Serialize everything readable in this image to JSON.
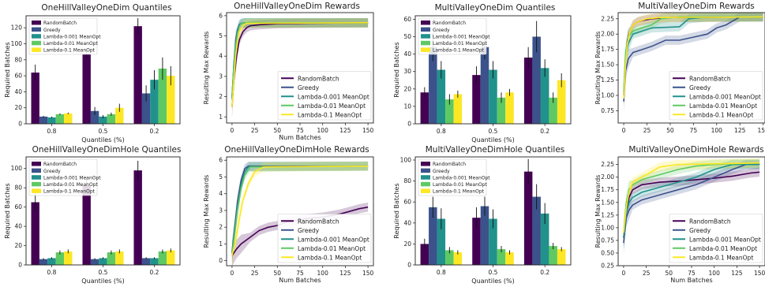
{
  "colors": {
    "RandomBatch": "#440154",
    "Greedy": "#3b528b",
    "Lambda-0.001 MeanOpt": "#21918c",
    "Lambda-0.01 MeanOpt": "#5ec962",
    "Lambda-0.1 MeanOpt": "#fde725"
  },
  "chart_data": [
    {
      "id": "p1",
      "type": "bar",
      "title": "OneHillValleyOneDim Quantiles",
      "xlabel": "Quantiles (%)",
      "ylabel": "Required Batches",
      "categories": [
        "0.8",
        "0.5",
        "0.2"
      ],
      "ylim": [
        0,
        135
      ],
      "yticks": [
        0,
        20,
        40,
        60,
        80,
        100,
        120
      ],
      "legend": "top-left",
      "series": [
        {
          "name": "RandomBatch",
          "values": [
            64,
            87,
            122
          ],
          "err": [
            10,
            6,
            10
          ]
        },
        {
          "name": "Greedy",
          "values": [
            9,
            16,
            38
          ],
          "err": [
            1,
            5,
            10
          ]
        },
        {
          "name": "Lambda-0.001 MeanOpt",
          "values": [
            8,
            9,
            55
          ],
          "err": [
            1,
            2,
            12
          ]
        },
        {
          "name": "Lambda-0.01 MeanOpt",
          "values": [
            12,
            12,
            69
          ],
          "err": [
            1,
            2,
            14
          ]
        },
        {
          "name": "Lambda-0.1 MeanOpt",
          "values": [
            13,
            20,
            60
          ],
          "err": [
            1,
            5,
            12
          ]
        }
      ]
    },
    {
      "id": "p2",
      "type": "line",
      "title": "OneHillValleyOneDim Rewards",
      "xlabel": "Num Batches",
      "ylabel": "Resulting Max Rewards",
      "xlim": [
        -6,
        156
      ],
      "ylim": [
        0.7,
        6.15
      ],
      "xticks": [
        0,
        25,
        50,
        75,
        100,
        125,
        150
      ],
      "yticks": [
        1,
        2,
        3,
        4,
        5,
        6
      ],
      "legend": "bottom-right",
      "series": [
        {
          "name": "RandomBatch",
          "x": [
            0,
            2,
            5,
            8,
            12,
            16,
            20,
            30,
            50,
            80,
            150
          ],
          "y": [
            1.5,
            2.8,
            4.0,
            4.8,
            5.2,
            5.4,
            5.5,
            5.55,
            5.6,
            5.62,
            5.65
          ]
        },
        {
          "name": "Greedy",
          "x": [
            0,
            2,
            4,
            6,
            8,
            10,
            14,
            150
          ],
          "y": [
            2.0,
            3.5,
            4.8,
            5.3,
            5.55,
            5.62,
            5.65,
            5.65
          ]
        },
        {
          "name": "Lambda-0.001 MeanOpt",
          "x": [
            0,
            2,
            4,
            6,
            8,
            10,
            14,
            150
          ],
          "y": [
            1.9,
            3.6,
            4.6,
            5.2,
            5.5,
            5.6,
            5.65,
            5.65
          ]
        },
        {
          "name": "Lambda-0.01 MeanOpt",
          "x": [
            0,
            2,
            4,
            6,
            8,
            10,
            14,
            150
          ],
          "y": [
            2.0,
            3.4,
            4.5,
            5.1,
            5.45,
            5.6,
            5.65,
            5.65
          ]
        },
        {
          "name": "Lambda-0.1 MeanOpt",
          "x": [
            0,
            2,
            4,
            6,
            8,
            12,
            16,
            150
          ],
          "y": [
            1.5,
            2.8,
            4.0,
            4.7,
            5.2,
            5.5,
            5.62,
            5.65
          ]
        }
      ]
    },
    {
      "id": "p3",
      "type": "bar",
      "title": "MultiValleyOneDim Quantiles",
      "xlabel": "Quantiles (%)",
      "ylabel": "Required Batches",
      "categories": [
        "0.8",
        "0.5",
        "0.2"
      ],
      "ylim": [
        0,
        62
      ],
      "yticks": [
        0,
        10,
        20,
        30,
        40,
        50,
        60
      ],
      "legend": "top-left",
      "series": [
        {
          "name": "RandomBatch",
          "values": [
            18,
            28,
            38
          ],
          "err": [
            3,
            5,
            6
          ]
        },
        {
          "name": "Greedy",
          "values": [
            44,
            44,
            50
          ],
          "err": [
            8,
            7,
            9
          ]
        },
        {
          "name": "Lambda-0.001 MeanOpt",
          "values": [
            31,
            31,
            32
          ],
          "err": [
            5,
            5,
            5
          ]
        },
        {
          "name": "Lambda-0.01 MeanOpt",
          "values": [
            14,
            15,
            15
          ],
          "err": [
            3,
            3,
            3
          ]
        },
        {
          "name": "Lambda-0.1 MeanOpt",
          "values": [
            17,
            18,
            25
          ],
          "err": [
            2,
            2,
            4
          ]
        }
      ]
    },
    {
      "id": "p4",
      "type": "line",
      "title": "MultiValleyOneDim Rewards",
      "xlabel": "",
      "ylabel": "Resulting Max Rewards",
      "xlim": [
        -6,
        152
      ],
      "ylim": [
        0.55,
        2.35
      ],
      "xticks": [
        0,
        25,
        50,
        75,
        100,
        125,
        150
      ],
      "yticks": [
        0.75,
        1.0,
        1.25,
        1.5,
        1.75,
        2.0,
        2.25
      ],
      "legend": "bottom-right",
      "series": [
        {
          "name": "RandomBatch",
          "x": [
            0,
            2,
            4,
            7,
            10,
            15,
            20,
            30,
            50,
            150
          ],
          "y": [
            1.0,
            1.6,
            1.9,
            2.05,
            2.15,
            2.2,
            2.22,
            2.25,
            2.27,
            2.28
          ]
        },
        {
          "name": "Greedy",
          "x": [
            0,
            2,
            5,
            10,
            20,
            30,
            45,
            60,
            75,
            90,
            100,
            110,
            125,
            150
          ],
          "y": [
            0.9,
            1.4,
            1.6,
            1.7,
            1.75,
            1.8,
            1.9,
            1.9,
            1.95,
            2.0,
            2.1,
            2.15,
            2.28,
            2.28
          ]
        },
        {
          "name": "Lambda-0.001 MeanOpt",
          "x": [
            0,
            2,
            5,
            10,
            20,
            30,
            60,
            70,
            90,
            150
          ],
          "y": [
            1.05,
            1.6,
            1.85,
            2.0,
            2.05,
            2.1,
            2.12,
            2.25,
            2.28,
            2.28
          ]
        },
        {
          "name": "Lambda-0.01 MeanOpt",
          "x": [
            0,
            2,
            5,
            10,
            20,
            30,
            40,
            60,
            150
          ],
          "y": [
            1.1,
            1.7,
            1.95,
            2.05,
            2.1,
            2.15,
            2.25,
            2.28,
            2.28
          ]
        },
        {
          "name": "Lambda-0.1 MeanOpt",
          "x": [
            0,
            2,
            4,
            7,
            10,
            15,
            25,
            40,
            150
          ],
          "y": [
            0.95,
            1.5,
            1.85,
            2.05,
            2.15,
            2.2,
            2.25,
            2.27,
            2.28
          ]
        }
      ]
    },
    {
      "id": "p5",
      "type": "bar",
      "title": "OneHillValleyOneDimHole Quantiles",
      "xlabel": "Quantiles (%)",
      "ylabel": "Required Batches",
      "categories": [
        "0.8",
        "0.5",
        "0.2"
      ],
      "ylim": [
        0,
        112
      ],
      "yticks": [
        0,
        20,
        40,
        60,
        80,
        100
      ],
      "legend": "top-left",
      "series": [
        {
          "name": "RandomBatch",
          "values": [
            65,
            82,
            98
          ],
          "err": [
            9,
            9,
            10
          ]
        },
        {
          "name": "Greedy",
          "values": [
            6,
            6,
            7
          ],
          "err": [
            1,
            1,
            1
          ]
        },
        {
          "name": "Lambda-0.001 MeanOpt",
          "values": [
            7,
            7,
            7
          ],
          "err": [
            1,
            1,
            1
          ]
        },
        {
          "name": "Lambda-0.01 MeanOpt",
          "values": [
            13,
            13,
            14
          ],
          "err": [
            2,
            2,
            2
          ]
        },
        {
          "name": "Lambda-0.1 MeanOpt",
          "values": [
            14,
            14,
            15
          ],
          "err": [
            2,
            2,
            2
          ]
        }
      ]
    },
    {
      "id": "p6",
      "type": "line",
      "title": "OneHillValleyOneDimHole Rewards",
      "xlabel": "Num Batches",
      "ylabel": "Resulting Max Rewards",
      "xlim": [
        -6,
        156
      ],
      "ylim": [
        -0.3,
        6.2
      ],
      "xticks": [
        0,
        25,
        50,
        75,
        100,
        125,
        150
      ],
      "yticks": [
        0,
        1,
        2,
        3,
        4,
        5,
        6
      ],
      "legend": "bottom-right",
      "series": [
        {
          "name": "RandomBatch",
          "x": [
            0,
            5,
            10,
            20,
            30,
            40,
            50,
            60,
            80,
            100,
            120,
            140,
            150
          ],
          "y": [
            0.3,
            0.7,
            1.0,
            1.4,
            1.8,
            2.0,
            2.1,
            2.3,
            2.5,
            2.6,
            2.8,
            3.1,
            3.2
          ]
        },
        {
          "name": "Greedy",
          "x": [
            0,
            3,
            6,
            10,
            14,
            18,
            150
          ],
          "y": [
            0.5,
            2.0,
            3.5,
            4.8,
            5.5,
            5.65,
            5.65
          ]
        },
        {
          "name": "Lambda-0.001 MeanOpt",
          "x": [
            0,
            3,
            6,
            10,
            14,
            18,
            150
          ],
          "y": [
            0.5,
            1.8,
            3.2,
            4.5,
            5.3,
            5.6,
            5.65
          ]
        },
        {
          "name": "Lambda-0.01 MeanOpt",
          "x": [
            0,
            3,
            6,
            10,
            14,
            20,
            150
          ],
          "y": [
            0.4,
            1.6,
            3.0,
            4.3,
            5.1,
            5.6,
            5.65
          ]
        },
        {
          "name": "Lambda-0.1 MeanOpt",
          "x": [
            0,
            4,
            8,
            12,
            18,
            25,
            35,
            150
          ],
          "y": [
            0.3,
            1.2,
            2.5,
            3.6,
            4.6,
            5.3,
            5.6,
            5.65
          ]
        }
      ]
    },
    {
      "id": "p7",
      "type": "bar",
      "title": "MultiValleyOneDimHole Quantiles",
      "xlabel": "Quantiles (%)",
      "ylabel": "Required Batches",
      "categories": [
        "0.8",
        "0.5",
        "0.2"
      ],
      "ylim": [
        0,
        103
      ],
      "yticks": [
        0,
        20,
        40,
        60,
        80,
        100
      ],
      "legend": "top-left",
      "series": [
        {
          "name": "RandomBatch",
          "values": [
            20,
            45,
            89
          ],
          "err": [
            5,
            10,
            12
          ]
        },
        {
          "name": "Greedy",
          "values": [
            55,
            56,
            65
          ],
          "err": [
            10,
            9,
            12
          ]
        },
        {
          "name": "Lambda-0.001 MeanOpt",
          "values": [
            44,
            44,
            49
          ],
          "err": [
            10,
            9,
            10
          ]
        },
        {
          "name": "Lambda-0.01 MeanOpt",
          "values": [
            14,
            15,
            18
          ],
          "err": [
            3,
            3,
            3
          ]
        },
        {
          "name": "Lambda-0.1 MeanOpt",
          "values": [
            12,
            12,
            15
          ],
          "err": [
            2,
            2,
            2
          ]
        }
      ]
    },
    {
      "id": "p8",
      "type": "line",
      "title": "MultiValleyOneDimHole Rewards",
      "xlabel": "Num Batches",
      "ylabel": "Resulting Max Rewards",
      "xlim": [
        -6,
        156
      ],
      "ylim": [
        0.25,
        2.4
      ],
      "xticks": [
        0,
        25,
        50,
        75,
        100,
        125,
        150
      ],
      "yticks": [
        0.25,
        0.5,
        0.75,
        1.0,
        1.25,
        1.5,
        1.75,
        2.0,
        2.25
      ],
      "legend": "bottom-right",
      "series": [
        {
          "name": "RandomBatch",
          "x": [
            0,
            3,
            6,
            10,
            20,
            40,
            60,
            80,
            100,
            120,
            140,
            150
          ],
          "y": [
            0.8,
            1.3,
            1.6,
            1.75,
            1.85,
            1.9,
            1.92,
            1.95,
            1.98,
            2.02,
            2.08,
            2.1
          ]
        },
        {
          "name": "Greedy",
          "x": [
            0,
            3,
            6,
            10,
            20,
            40,
            60,
            80,
            100,
            120,
            135,
            150
          ],
          "y": [
            0.7,
            1.2,
            1.35,
            1.45,
            1.55,
            1.65,
            1.75,
            1.85,
            2.0,
            2.15,
            2.25,
            2.25
          ]
        },
        {
          "name": "Lambda-0.001 MeanOpt",
          "x": [
            0,
            3,
            6,
            10,
            20,
            40,
            60,
            80,
            100,
            120,
            150
          ],
          "y": [
            0.8,
            1.3,
            1.5,
            1.6,
            1.7,
            1.8,
            1.9,
            2.0,
            2.15,
            2.25,
            2.25
          ]
        },
        {
          "name": "Lambda-0.01 MeanOpt",
          "x": [
            0,
            3,
            6,
            10,
            20,
            40,
            60,
            80,
            100,
            150
          ],
          "y": [
            0.9,
            1.5,
            1.75,
            1.85,
            1.95,
            2.05,
            2.15,
            2.22,
            2.25,
            2.28
          ]
        },
        {
          "name": "Lambda-0.1 MeanOpt",
          "x": [
            0,
            3,
            6,
            10,
            20,
            30,
            40,
            60,
            150
          ],
          "y": [
            0.9,
            1.4,
            1.7,
            1.9,
            2.0,
            2.1,
            2.2,
            2.25,
            2.28
          ]
        }
      ]
    }
  ]
}
